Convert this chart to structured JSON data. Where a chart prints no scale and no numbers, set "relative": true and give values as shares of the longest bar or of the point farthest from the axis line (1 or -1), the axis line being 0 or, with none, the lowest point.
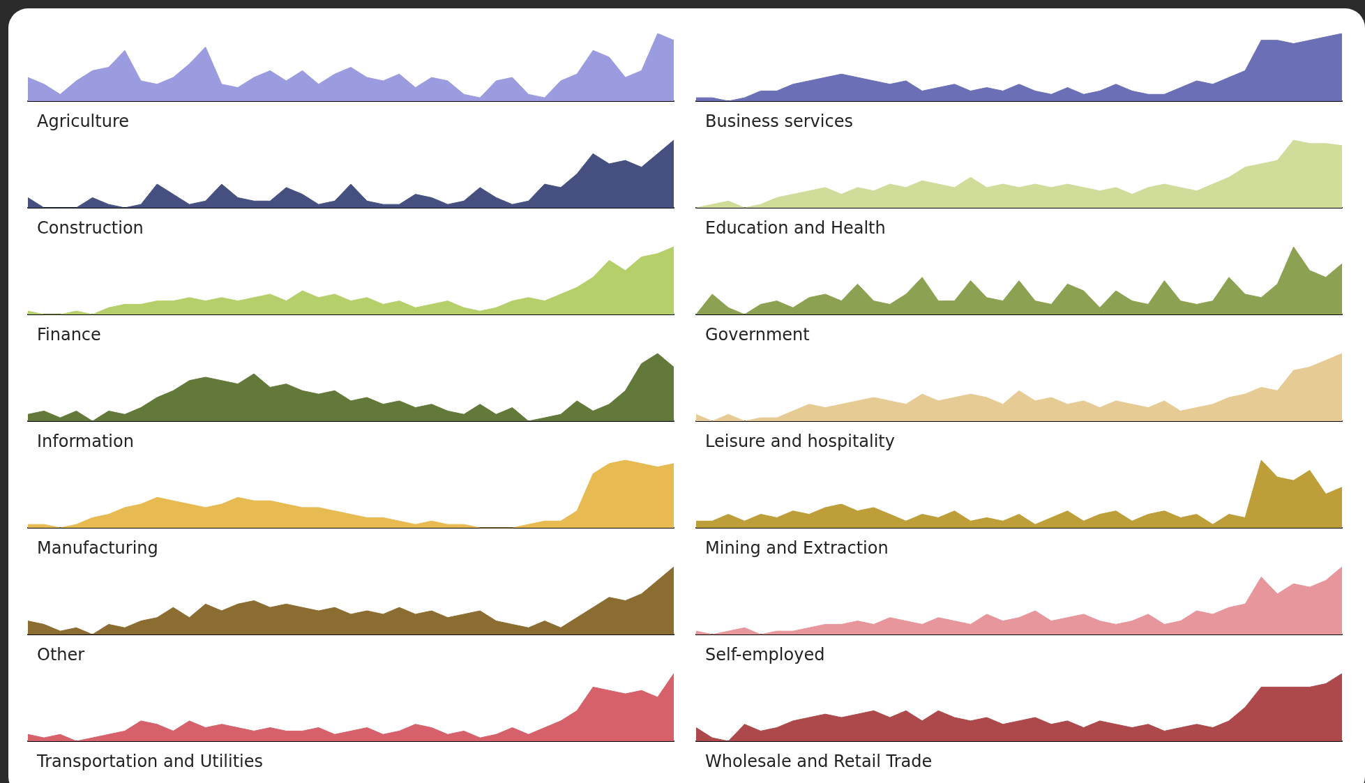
{
  "chart_data": [
    {
      "type": "area",
      "relative": true,
      "xlabel": "Agriculture",
      "color": "#9b9be0",
      "categories": [
        null,
        null,
        null,
        null,
        null,
        null,
        null,
        null,
        null,
        null,
        null,
        null,
        null,
        null,
        null,
        null,
        null,
        null,
        null,
        null,
        null,
        null,
        null,
        null,
        null,
        null,
        null,
        null,
        null,
        null,
        null,
        null,
        null,
        null,
        null,
        null,
        null,
        null,
        null,
        null,
        null
      ],
      "values": [
        0.35,
        0.25,
        0.1,
        0.3,
        0.45,
        0.5,
        0.75,
        0.3,
        0.25,
        0.35,
        0.55,
        0.8,
        0.25,
        0.2,
        0.35,
        0.45,
        0.3,
        0.45,
        0.25,
        0.4,
        0.5,
        0.35,
        0.3,
        0.4,
        0.2,
        0.35,
        0.3,
        0.1,
        0.05,
        0.3,
        0.35,
        0.1,
        0.05,
        0.3,
        0.4,
        0.75,
        0.65,
        0.35,
        0.45,
        1.0,
        0.9
      ]
    },
    {
      "type": "area",
      "relative": true,
      "xlabel": "Business services",
      "color": "#6b6fb5",
      "categories": [
        null,
        null,
        null,
        null,
        null,
        null,
        null,
        null,
        null,
        null,
        null,
        null,
        null,
        null,
        null,
        null,
        null,
        null,
        null,
        null,
        null,
        null,
        null,
        null,
        null,
        null,
        null,
        null,
        null,
        null,
        null,
        null,
        null,
        null,
        null,
        null,
        null,
        null,
        null,
        null,
        null
      ],
      "values": [
        0.05,
        0.05,
        0.0,
        0.05,
        0.15,
        0.15,
        0.25,
        0.3,
        0.35,
        0.4,
        0.35,
        0.3,
        0.25,
        0.3,
        0.15,
        0.2,
        0.25,
        0.15,
        0.2,
        0.15,
        0.25,
        0.15,
        0.1,
        0.2,
        0.1,
        0.15,
        0.25,
        0.15,
        0.1,
        0.1,
        0.2,
        0.3,
        0.25,
        0.35,
        0.45,
        0.9,
        0.9,
        0.85,
        0.9,
        0.95,
        1.0
      ]
    },
    {
      "type": "area",
      "relative": true,
      "xlabel": "Construction",
      "color": "#465080",
      "categories": [
        null,
        null,
        null,
        null,
        null,
        null,
        null,
        null,
        null,
        null,
        null,
        null,
        null,
        null,
        null,
        null,
        null,
        null,
        null,
        null,
        null,
        null,
        null,
        null,
        null,
        null,
        null,
        null,
        null,
        null,
        null,
        null,
        null,
        null,
        null,
        null,
        null,
        null,
        null,
        null,
        null
      ],
      "values": [
        0.15,
        0.0,
        0.0,
        0.0,
        0.15,
        0.05,
        0.0,
        0.05,
        0.35,
        0.2,
        0.05,
        0.1,
        0.35,
        0.15,
        0.1,
        0.1,
        0.3,
        0.2,
        0.05,
        0.1,
        0.35,
        0.1,
        0.05,
        0.05,
        0.2,
        0.15,
        0.05,
        0.1,
        0.3,
        0.15,
        0.05,
        0.1,
        0.35,
        0.3,
        0.5,
        0.8,
        0.65,
        0.7,
        0.6,
        0.8,
        1.0
      ]
    },
    {
      "type": "area",
      "relative": true,
      "xlabel": "Education and Health",
      "color": "#cfdc9a",
      "categories": [
        null,
        null,
        null,
        null,
        null,
        null,
        null,
        null,
        null,
        null,
        null,
        null,
        null,
        null,
        null,
        null,
        null,
        null,
        null,
        null,
        null,
        null,
        null,
        null,
        null,
        null,
        null,
        null,
        null,
        null,
        null,
        null,
        null,
        null,
        null,
        null,
        null,
        null,
        null,
        null,
        null
      ],
      "values": [
        0.0,
        0.05,
        0.1,
        0.0,
        0.05,
        0.15,
        0.2,
        0.25,
        0.3,
        0.2,
        0.3,
        0.25,
        0.35,
        0.3,
        0.4,
        0.35,
        0.3,
        0.45,
        0.3,
        0.35,
        0.3,
        0.35,
        0.3,
        0.35,
        0.3,
        0.25,
        0.3,
        0.2,
        0.3,
        0.35,
        0.3,
        0.25,
        0.35,
        0.45,
        0.6,
        0.65,
        0.7,
        1.0,
        0.95,
        0.95,
        0.92
      ]
    },
    {
      "type": "area",
      "relative": true,
      "xlabel": "Finance",
      "color": "#b5cf6b",
      "categories": [
        null,
        null,
        null,
        null,
        null,
        null,
        null,
        null,
        null,
        null,
        null,
        null,
        null,
        null,
        null,
        null,
        null,
        null,
        null,
        null,
        null,
        null,
        null,
        null,
        null,
        null,
        null,
        null,
        null,
        null,
        null,
        null,
        null,
        null,
        null,
        null,
        null,
        null,
        null,
        null,
        null
      ],
      "values": [
        0.05,
        0.0,
        0.0,
        0.05,
        0.0,
        0.1,
        0.15,
        0.15,
        0.2,
        0.2,
        0.25,
        0.2,
        0.25,
        0.2,
        0.25,
        0.3,
        0.2,
        0.35,
        0.25,
        0.3,
        0.2,
        0.25,
        0.15,
        0.2,
        0.1,
        0.15,
        0.2,
        0.1,
        0.05,
        0.1,
        0.2,
        0.25,
        0.2,
        0.3,
        0.4,
        0.55,
        0.8,
        0.65,
        0.85,
        0.9,
        1.0
      ]
    },
    {
      "type": "area",
      "relative": true,
      "xlabel": "Government",
      "color": "#8ca252",
      "categories": [
        null,
        null,
        null,
        null,
        null,
        null,
        null,
        null,
        null,
        null,
        null,
        null,
        null,
        null,
        null,
        null,
        null,
        null,
        null,
        null,
        null,
        null,
        null,
        null,
        null,
        null,
        null,
        null,
        null,
        null,
        null,
        null,
        null,
        null,
        null,
        null,
        null,
        null,
        null,
        null,
        null
      ],
      "values": [
        0.0,
        0.3,
        0.1,
        0.0,
        0.15,
        0.2,
        0.1,
        0.25,
        0.3,
        0.2,
        0.45,
        0.2,
        0.15,
        0.3,
        0.55,
        0.2,
        0.2,
        0.5,
        0.25,
        0.2,
        0.5,
        0.2,
        0.15,
        0.45,
        0.35,
        0.1,
        0.35,
        0.2,
        0.15,
        0.5,
        0.2,
        0.15,
        0.2,
        0.55,
        0.3,
        0.25,
        0.45,
        1.0,
        0.65,
        0.55,
        0.75
      ]
    },
    {
      "type": "area",
      "relative": true,
      "xlabel": "Information",
      "color": "#637939",
      "categories": [
        null,
        null,
        null,
        null,
        null,
        null,
        null,
        null,
        null,
        null,
        null,
        null,
        null,
        null,
        null,
        null,
        null,
        null,
        null,
        null,
        null,
        null,
        null,
        null,
        null,
        null,
        null,
        null,
        null,
        null,
        null,
        null,
        null,
        null,
        null,
        null,
        null,
        null,
        null,
        null,
        null
      ],
      "values": [
        0.1,
        0.15,
        0.05,
        0.15,
        0.0,
        0.15,
        0.1,
        0.2,
        0.35,
        0.45,
        0.6,
        0.65,
        0.6,
        0.55,
        0.7,
        0.5,
        0.55,
        0.45,
        0.4,
        0.45,
        0.3,
        0.35,
        0.25,
        0.3,
        0.2,
        0.25,
        0.15,
        0.1,
        0.25,
        0.1,
        0.2,
        0.0,
        0.05,
        0.1,
        0.3,
        0.15,
        0.25,
        0.45,
        0.85,
        1.0,
        0.8
      ]
    },
    {
      "type": "area",
      "relative": true,
      "xlabel": "Leisure and hospitality",
      "color": "#e7cb94",
      "categories": [
        null,
        null,
        null,
        null,
        null,
        null,
        null,
        null,
        null,
        null,
        null,
        null,
        null,
        null,
        null,
        null,
        null,
        null,
        null,
        null,
        null,
        null,
        null,
        null,
        null,
        null,
        null,
        null,
        null,
        null,
        null,
        null,
        null,
        null,
        null,
        null,
        null,
        null,
        null,
        null,
        null
      ],
      "values": [
        0.1,
        0.0,
        0.1,
        0.0,
        0.05,
        0.05,
        0.15,
        0.25,
        0.2,
        0.25,
        0.3,
        0.35,
        0.3,
        0.25,
        0.4,
        0.3,
        0.35,
        0.4,
        0.35,
        0.25,
        0.45,
        0.3,
        0.35,
        0.25,
        0.3,
        0.2,
        0.3,
        0.25,
        0.2,
        0.3,
        0.15,
        0.2,
        0.25,
        0.35,
        0.4,
        0.5,
        0.45,
        0.75,
        0.8,
        0.9,
        1.0
      ]
    },
    {
      "type": "area",
      "relative": true,
      "xlabel": "Manufacturing",
      "color": "#e7ba52",
      "categories": [
        null,
        null,
        null,
        null,
        null,
        null,
        null,
        null,
        null,
        null,
        null,
        null,
        null,
        null,
        null,
        null,
        null,
        null,
        null,
        null,
        null,
        null,
        null,
        null,
        null,
        null,
        null,
        null,
        null,
        null,
        null,
        null,
        null,
        null,
        null,
        null,
        null,
        null,
        null,
        null,
        null
      ],
      "values": [
        0.05,
        0.05,
        0.0,
        0.05,
        0.15,
        0.2,
        0.3,
        0.35,
        0.45,
        0.4,
        0.35,
        0.3,
        0.35,
        0.45,
        0.4,
        0.4,
        0.35,
        0.3,
        0.3,
        0.25,
        0.2,
        0.15,
        0.15,
        0.1,
        0.05,
        0.1,
        0.05,
        0.05,
        0.0,
        0.0,
        0.0,
        0.05,
        0.1,
        0.1,
        0.25,
        0.8,
        0.95,
        1.0,
        0.95,
        0.9,
        0.95
      ]
    },
    {
      "type": "area",
      "relative": true,
      "xlabel": "Mining and Extraction",
      "color": "#bd9e39",
      "categories": [
        null,
        null,
        null,
        null,
        null,
        null,
        null,
        null,
        null,
        null,
        null,
        null,
        null,
        null,
        null,
        null,
        null,
        null,
        null,
        null,
        null,
        null,
        null,
        null,
        null,
        null,
        null,
        null,
        null,
        null,
        null,
        null,
        null,
        null,
        null,
        null,
        null,
        null,
        null,
        null,
        null
      ],
      "values": [
        0.1,
        0.1,
        0.2,
        0.1,
        0.2,
        0.15,
        0.25,
        0.2,
        0.3,
        0.35,
        0.25,
        0.3,
        0.2,
        0.1,
        0.2,
        0.15,
        0.25,
        0.1,
        0.15,
        0.1,
        0.2,
        0.05,
        0.15,
        0.25,
        0.1,
        0.2,
        0.25,
        0.1,
        0.2,
        0.25,
        0.15,
        0.2,
        0.05,
        0.2,
        0.15,
        1.0,
        0.75,
        0.7,
        0.85,
        0.5,
        0.6
      ]
    },
    {
      "type": "area",
      "relative": true,
      "xlabel": "Other",
      "color": "#8c6d31",
      "categories": [
        null,
        null,
        null,
        null,
        null,
        null,
        null,
        null,
        null,
        null,
        null,
        null,
        null,
        null,
        null,
        null,
        null,
        null,
        null,
        null,
        null,
        null,
        null,
        null,
        null,
        null,
        null,
        null,
        null,
        null,
        null,
        null,
        null,
        null,
        null,
        null,
        null,
        null,
        null,
        null,
        null
      ],
      "values": [
        0.2,
        0.15,
        0.05,
        0.1,
        0.0,
        0.15,
        0.1,
        0.2,
        0.25,
        0.4,
        0.25,
        0.45,
        0.35,
        0.45,
        0.5,
        0.4,
        0.45,
        0.4,
        0.35,
        0.4,
        0.3,
        0.35,
        0.3,
        0.4,
        0.3,
        0.35,
        0.25,
        0.3,
        0.35,
        0.2,
        0.15,
        0.1,
        0.2,
        0.1,
        0.25,
        0.4,
        0.55,
        0.5,
        0.6,
        0.8,
        1.0
      ]
    },
    {
      "type": "area",
      "relative": true,
      "xlabel": "Self-employed",
      "color": "#e7969c",
      "categories": [
        null,
        null,
        null,
        null,
        null,
        null,
        null,
        null,
        null,
        null,
        null,
        null,
        null,
        null,
        null,
        null,
        null,
        null,
        null,
        null,
        null,
        null,
        null,
        null,
        null,
        null,
        null,
        null,
        null,
        null,
        null,
        null,
        null,
        null,
        null,
        null,
        null,
        null,
        null,
        null,
        null
      ],
      "values": [
        0.05,
        0.0,
        0.05,
        0.1,
        0.0,
        0.05,
        0.05,
        0.1,
        0.15,
        0.15,
        0.2,
        0.15,
        0.25,
        0.2,
        0.15,
        0.25,
        0.2,
        0.15,
        0.3,
        0.2,
        0.25,
        0.35,
        0.2,
        0.25,
        0.3,
        0.2,
        0.15,
        0.2,
        0.3,
        0.15,
        0.2,
        0.35,
        0.3,
        0.4,
        0.45,
        0.85,
        0.6,
        0.75,
        0.7,
        0.8,
        1.0
      ]
    },
    {
      "type": "area",
      "relative": true,
      "xlabel": "Transportation and Utilities",
      "color": "#d6616b",
      "categories": [
        null,
        null,
        null,
        null,
        null,
        null,
        null,
        null,
        null,
        null,
        null,
        null,
        null,
        null,
        null,
        null,
        null,
        null,
        null,
        null,
        null,
        null,
        null,
        null,
        null,
        null,
        null,
        null,
        null,
        null,
        null,
        null,
        null,
        null,
        null,
        null,
        null,
        null,
        null,
        null,
        null
      ],
      "values": [
        0.1,
        0.05,
        0.1,
        0.0,
        0.05,
        0.1,
        0.15,
        0.3,
        0.25,
        0.15,
        0.3,
        0.2,
        0.25,
        0.2,
        0.15,
        0.2,
        0.15,
        0.15,
        0.2,
        0.1,
        0.15,
        0.2,
        0.1,
        0.15,
        0.25,
        0.2,
        0.1,
        0.15,
        0.05,
        0.1,
        0.2,
        0.1,
        0.2,
        0.3,
        0.45,
        0.8,
        0.75,
        0.7,
        0.75,
        0.65,
        1.0
      ]
    },
    {
      "type": "area",
      "relative": true,
      "xlabel": "Wholesale and Retail Trade",
      "color": "#ad494a",
      "categories": [
        null,
        null,
        null,
        null,
        null,
        null,
        null,
        null,
        null,
        null,
        null,
        null,
        null,
        null,
        null,
        null,
        null,
        null,
        null,
        null,
        null,
        null,
        null,
        null,
        null,
        null,
        null,
        null,
        null,
        null,
        null,
        null,
        null,
        null,
        null,
        null,
        null,
        null,
        null,
        null,
        null
      ],
      "values": [
        0.2,
        0.05,
        0.0,
        0.25,
        0.15,
        0.2,
        0.3,
        0.35,
        0.4,
        0.35,
        0.4,
        0.45,
        0.35,
        0.45,
        0.3,
        0.45,
        0.35,
        0.3,
        0.35,
        0.25,
        0.3,
        0.35,
        0.25,
        0.3,
        0.2,
        0.3,
        0.25,
        0.2,
        0.25,
        0.15,
        0.2,
        0.25,
        0.2,
        0.3,
        0.5,
        0.8,
        0.8,
        0.8,
        0.8,
        0.85,
        1.0
      ]
    }
  ]
}
